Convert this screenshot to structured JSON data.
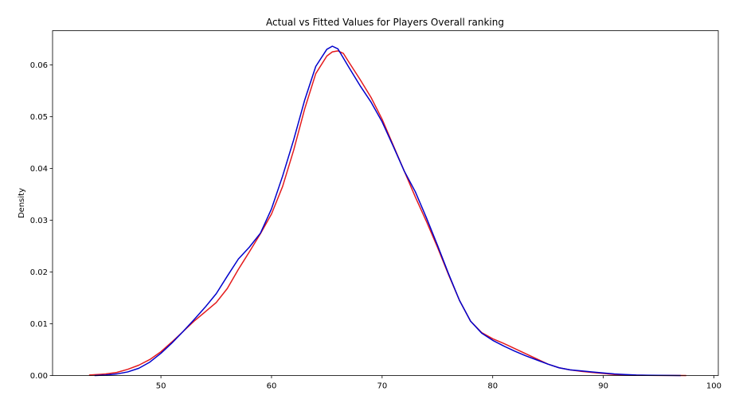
{
  "chart_data": {
    "type": "line",
    "title": "Actual vs Fitted Values for Players Overall ranking",
    "xlabel": "",
    "ylabel": "Density",
    "xlim": [
      40.2,
      100.4
    ],
    "ylim": [
      0,
      0.0666
    ],
    "xticks": [
      50,
      60,
      70,
      80,
      90,
      100
    ],
    "yticks": [
      0.0,
      0.01,
      0.02,
      0.03,
      0.04,
      0.05,
      0.06
    ],
    "xtick_labels": [
      "50",
      "60",
      "70",
      "80",
      "90",
      "100"
    ],
    "ytick_labels": [
      "0.00",
      "0.01",
      "0.02",
      "0.03",
      "0.04",
      "0.05",
      "0.06"
    ],
    "grid": false,
    "legend": false,
    "series": [
      {
        "color": "#e41a1c",
        "x": [
          43.5,
          45,
          46,
          47,
          48,
          49,
          50,
          51,
          52,
          53,
          54,
          55,
          56,
          57,
          57.5,
          58,
          59,
          60,
          61,
          62,
          63,
          64,
          65,
          65.5,
          66,
          66.5,
          67,
          68,
          69,
          70,
          71,
          72,
          73,
          74,
          75,
          76,
          77,
          78,
          79,
          80,
          81,
          82,
          83,
          84,
          85,
          86,
          87,
          88,
          89,
          90,
          91,
          92,
          93,
          94,
          95,
          96,
          97.5
        ],
        "y": [
          0.0001,
          0.0003,
          0.0006,
          0.0012,
          0.002,
          0.0031,
          0.0046,
          0.0065,
          0.0085,
          0.0105,
          0.0123,
          0.0141,
          0.0168,
          0.0205,
          0.0222,
          0.0239,
          0.0274,
          0.0312,
          0.0365,
          0.0435,
          0.0515,
          0.0583,
          0.0617,
          0.0625,
          0.0627,
          0.0622,
          0.0605,
          0.0572,
          0.0537,
          0.0495,
          0.0445,
          0.0395,
          0.0345,
          0.0298,
          0.0248,
          0.0195,
          0.0145,
          0.0105,
          0.0083,
          0.0071,
          0.0062,
          0.0052,
          0.0042,
          0.0032,
          0.0022,
          0.0015,
          0.0011,
          0.0008,
          0.0006,
          0.0004,
          0.0002,
          0.0001,
          5e-05,
          3e-05,
          2e-05,
          1e-05,
          0.0
        ]
      },
      {
        "color": "#0000cc",
        "x": [
          44,
          45,
          46,
          47,
          48,
          49,
          50,
          51,
          52,
          53,
          54,
          55,
          56,
          57,
          58,
          59,
          60,
          61,
          62,
          63,
          64,
          65,
          65.5,
          66,
          67,
          68,
          69,
          70,
          71,
          72,
          73,
          74,
          75,
          76,
          77,
          78,
          79,
          80,
          81,
          82,
          83,
          84,
          85,
          86,
          87,
          88,
          89,
          90,
          91,
          92,
          93,
          94,
          95,
          96,
          97
        ],
        "y": [
          0.0,
          0.0001,
          0.0003,
          0.0007,
          0.0014,
          0.0026,
          0.0043,
          0.0063,
          0.0085,
          0.0108,
          0.0132,
          0.0158,
          0.0192,
          0.0225,
          0.0248,
          0.0275,
          0.0322,
          0.0385,
          0.0455,
          0.0532,
          0.0597,
          0.063,
          0.0636,
          0.0631,
          0.0595,
          0.056,
          0.0528,
          0.049,
          0.0443,
          0.0395,
          0.0355,
          0.0305,
          0.0252,
          0.0197,
          0.0145,
          0.0105,
          0.0082,
          0.0068,
          0.0057,
          0.0047,
          0.0038,
          0.003,
          0.0022,
          0.0015,
          0.0011,
          0.0009,
          0.0007,
          0.0005,
          0.0003,
          0.0002,
          0.0001,
          5e-05,
          3e-05,
          1e-05,
          0.0
        ]
      }
    ]
  }
}
